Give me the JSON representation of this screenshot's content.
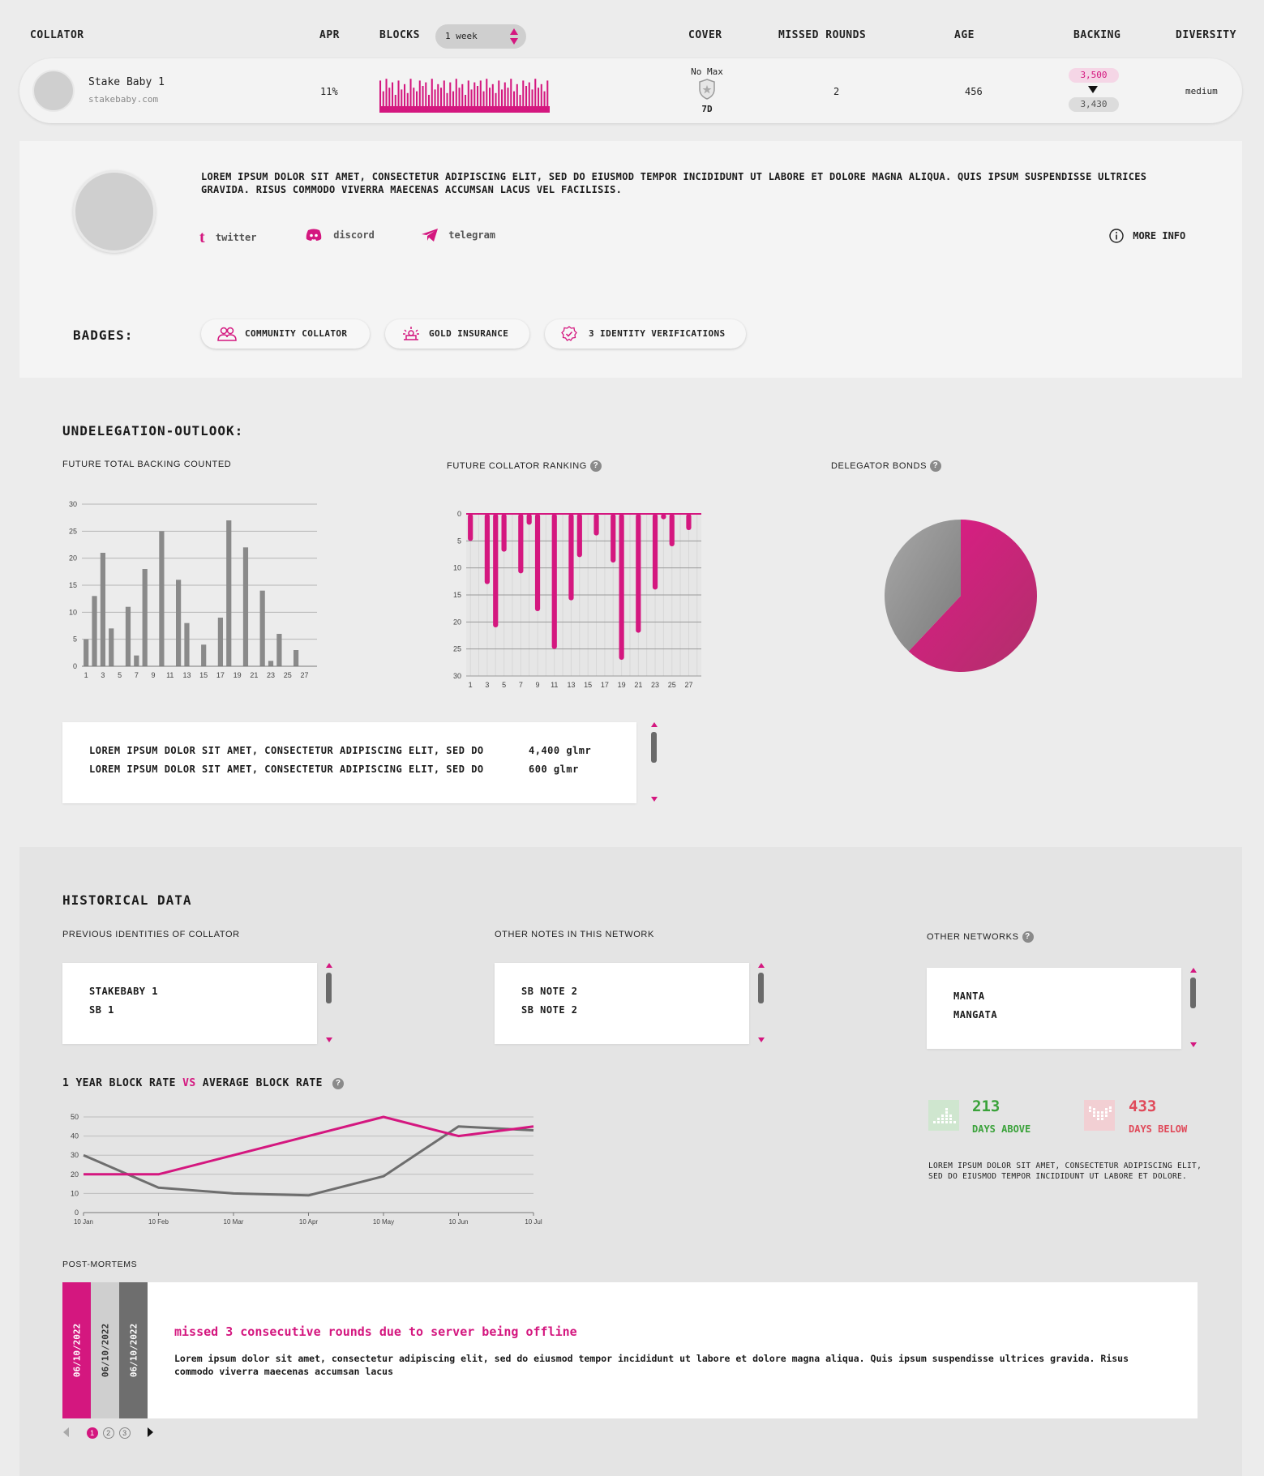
{
  "header": {
    "collator": "COLLATOR",
    "apr": "APR",
    "blocks": "BLOCKS",
    "blocks_period": "1 week",
    "cover": "COVER",
    "missed_rounds": "MISSED ROUNDS",
    "age": "AGE",
    "backing": "BACKING",
    "diversity": "DIVERSITY"
  },
  "row": {
    "name": "Stake Baby 1",
    "site": "stakebaby.com",
    "apr": "11%",
    "cover_top": "No Max",
    "cover_bottom": "7D",
    "missed_rounds": "2",
    "age": "456",
    "backing_future": "3,500",
    "backing_current": "3,430",
    "diversity": "medium",
    "block_bars": [
      0.9,
      0.6,
      0.95,
      0.7,
      0.85,
      0.5,
      0.9,
      0.65,
      0.8,
      0.55,
      0.95,
      0.7,
      0.6,
      0.9,
      0.75,
      0.85,
      0.5,
      0.95,
      0.65,
      0.8,
      0.7,
      0.9,
      0.55,
      0.85,
      0.6,
      0.95,
      0.7,
      0.8,
      0.5,
      0.9,
      0.65,
      0.85,
      0.75,
      0.9,
      0.6,
      0.95,
      0.7,
      0.8,
      0.55,
      0.9,
      0.65,
      0.85,
      0.7,
      0.95,
      0.6,
      0.8,
      0.5,
      0.9,
      0.75,
      0.85,
      0.65,
      0.95,
      0.7,
      0.8,
      0.6,
      0.9
    ]
  },
  "profile": {
    "description": "LOREM IPSUM DOLOR SIT AMET, CONSECTETUR ADIPISCING ELIT, SED DO EIUSMOD TEMPOR INCIDIDUNT UT LABORE ET DOLORE MAGNA ALIQUA. QUIS IPSUM SUSPENDISSE ULTRICES GRAVIDA. RISUS COMMODO VIVERRA MAECENAS ACCUMSAN LACUS VEL FACILISIS.",
    "twitter": "twitter",
    "discord": "discord",
    "telegram": "telegram",
    "more_info": "MORE INFO",
    "badges_label": "BADGES:",
    "badges": [
      "COMMUNITY COLLATOR",
      "GOLD INSURANCE",
      "3 IDENTITY VERIFICATIONS"
    ]
  },
  "undelegation": {
    "title": "UNDELEGATION-OUTLOOK:",
    "backing_title": "FUTURE TOTAL BACKING COUNTED",
    "ranking_title": "FUTURE COLLATOR RANKING",
    "bonds_title": "DELEGATOR BONDS",
    "list": [
      {
        "text": "LOREM IPSUM DOLOR SIT AMET, CONSECTETUR ADIPISCING ELIT, SED DO",
        "value": "4,400 glmr"
      },
      {
        "text": "LOREM IPSUM DOLOR SIT AMET, CONSECTETUR ADIPISCING ELIT, SED DO",
        "value": "600 glmr"
      }
    ]
  },
  "historical": {
    "title": "HISTORICAL DATA",
    "prev_identities_title": "PREVIOUS IDENTITIES OF COLLATOR",
    "prev_identities": [
      "STAKEBABY 1",
      "SB 1"
    ],
    "other_notes_title": "OTHER NOTES IN THIS NETWORK",
    "other_notes": [
      "SB NOTE 2",
      "SB NOTE 2"
    ],
    "other_networks_title": "OTHER NETWORKS",
    "other_networks": [
      "MANTA",
      "MANGATA"
    ],
    "block_rate_title_a": "1 YEAR BLOCK RATE",
    "block_rate_title_vs": "VS",
    "block_rate_title_b": "AVERAGE BLOCK RATE",
    "days_above": "213",
    "days_above_label": "DAYS ABOVE",
    "days_below": "433",
    "days_below_label": "DAYS BELOW",
    "days_note": "LOREM IPSUM DOLOR SIT AMET, CONSECTETUR ADIPISCING ELIT, SED DO EIUSMOD TEMPOR INCIDIDUNT UT LABORE ET DOLORE.",
    "post_mortems_title": "POST-MORTEMS",
    "post_mortem_dates": [
      "06/10/2022",
      "06/10/2022",
      "06/10/2022"
    ],
    "post_mortem_headline": "missed 3 consecutive rounds due to server being offline",
    "post_mortem_body": "Lorem ipsum dolor sit amet, consectetur adipiscing elit, sed do eiusmod tempor incididunt ut labore et dolore magna aliqua. Quis ipsum suspendisse ultrices gravida. Risus commodo viverra maecenas accumsan lacus",
    "pages": [
      "1",
      "2",
      "3"
    ]
  },
  "colors": {
    "accent": "#d4177f",
    "grey_bar": "#8a8a8a",
    "green": "#3aa23a",
    "red": "#e04a5a"
  },
  "chart_data": [
    {
      "type": "bar",
      "title": "FUTURE TOTAL BACKING COUNTED",
      "categories": [
        1,
        2,
        3,
        4,
        5,
        6,
        7,
        8,
        9,
        10,
        11,
        12,
        13,
        14,
        15,
        16,
        17,
        18,
        19,
        20,
        21,
        22,
        23,
        24,
        25,
        26,
        27,
        28
      ],
      "x_tick_labels": [
        "1",
        "3",
        "5",
        "7",
        "9",
        "11",
        "13",
        "15",
        "17",
        "19",
        "21",
        "23",
        "25",
        "27"
      ],
      "values": [
        5,
        13,
        21,
        7,
        0,
        11,
        2,
        18,
        0,
        25,
        0,
        16,
        8,
        0,
        4,
        0,
        9,
        27,
        0,
        22,
        0,
        14,
        1,
        6,
        0,
        3,
        0,
        0
      ],
      "ylim": [
        0,
        30
      ],
      "y_ticks": [
        0,
        5,
        10,
        15,
        20,
        25,
        30
      ],
      "grid": true
    },
    {
      "type": "bar",
      "title": "FUTURE COLLATOR RANKING",
      "categories": [
        1,
        2,
        3,
        4,
        5,
        6,
        7,
        8,
        9,
        10,
        11,
        12,
        13,
        14,
        15,
        16,
        17,
        18,
        19,
        20,
        21,
        22,
        23,
        24,
        25,
        26,
        27,
        28
      ],
      "x_tick_labels": [
        "1",
        "3",
        "5",
        "7",
        "9",
        "11",
        "13",
        "15",
        "17",
        "19",
        "21",
        "23",
        "25",
        "27"
      ],
      "values": [
        5,
        0,
        13,
        21,
        7,
        0,
        11,
        2,
        18,
        0,
        25,
        0,
        16,
        8,
        0,
        4,
        0,
        9,
        27,
        0,
        22,
        0,
        14,
        1,
        6,
        0,
        3,
        0
      ],
      "ylim": [
        0,
        30
      ],
      "y_ticks": [
        0,
        5,
        10,
        15,
        20,
        25,
        30
      ],
      "y_inverted": true,
      "grid": true
    },
    {
      "type": "pie",
      "title": "DELEGATOR BONDS",
      "values": [
        62,
        38
      ],
      "colors": [
        "#d4177f",
        "#8c8c8c"
      ]
    },
    {
      "type": "line",
      "title": "1 YEAR BLOCK RATE VS AVERAGE BLOCK RATE",
      "x": [
        "10 Jan",
        "10 Feb",
        "10 Mar",
        "10 Apr",
        "10 May",
        "10 Jun",
        "10 Jul"
      ],
      "series": [
        {
          "values": [
            20,
            20,
            30,
            40,
            50,
            40,
            45
          ],
          "color": "#d4177f"
        },
        {
          "values": [
            30,
            13,
            10,
            9,
            19,
            45,
            43
          ],
          "color": "#6e6e6e"
        }
      ],
      "ylim": [
        0,
        50
      ],
      "y_ticks": [
        0,
        10,
        20,
        30,
        40,
        50
      ],
      "grid": true
    }
  ]
}
